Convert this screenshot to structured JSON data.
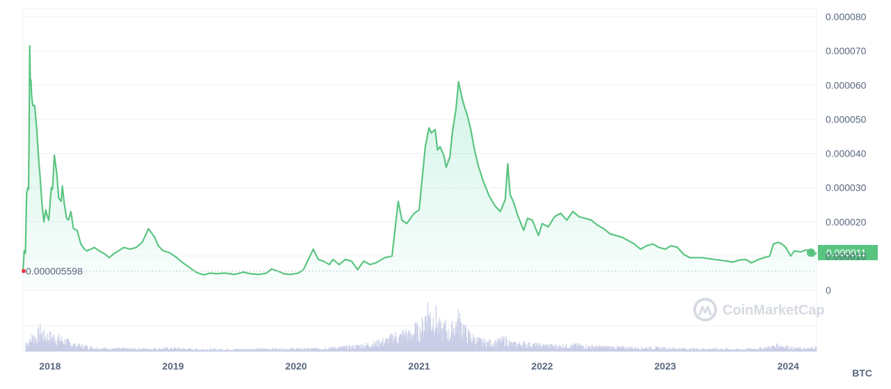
{
  "chart_data": {
    "type": "line",
    "y_unit": "BTC",
    "ylim": [
      0,
      8e-05
    ],
    "y_ticks": [
      "0",
      "0.000010",
      "0.000020",
      "0.000030",
      "0.000040",
      "0.000050",
      "0.000060",
      "0.000070",
      "0.000080"
    ],
    "x_ticks": [
      "2018",
      "2019",
      "2020",
      "2021",
      "2022",
      "2023",
      "2024"
    ],
    "current_price": "0.000011",
    "reference_price": "0.000005598",
    "reference_value": 5.598e-06,
    "watermark": "CoinMarketCap",
    "colors": {
      "up": "#16c784",
      "down": "#ea3943",
      "line_up": "#59c480",
      "line_down": "#e0403f",
      "volume": "#c9cde6"
    },
    "x_range": [
      2017.78,
      2024.23
    ],
    "series": [
      {
        "values": [
          [
            2017.78,
            5.6e-06
          ],
          [
            2017.79,
            1.15e-05
          ],
          [
            2017.8,
            1.08e-05
          ],
          [
            2017.81,
            2.85e-05
          ],
          [
            2017.82,
            3e-05
          ],
          [
            2017.825,
            2.95e-05
          ],
          [
            2017.83,
            4.5e-05
          ],
          [
            2017.835,
            7.15e-05
          ],
          [
            2017.84,
            6e-05
          ],
          [
            2017.845,
            6.15e-05
          ],
          [
            2017.85,
            5.7e-05
          ],
          [
            2017.86,
            5.4e-05
          ],
          [
            2017.875,
            5.4e-05
          ],
          [
            2017.89,
            4.8e-05
          ],
          [
            2017.91,
            3.7e-05
          ],
          [
            2017.92,
            3.3e-05
          ],
          [
            2017.935,
            2.5e-05
          ],
          [
            2017.95,
            2e-05
          ],
          [
            2017.965,
            2.35e-05
          ],
          [
            2017.975,
            2.2e-05
          ],
          [
            2017.99,
            2.05e-05
          ],
          [
            2018.01,
            3e-05
          ],
          [
            2018.02,
            2.95e-05
          ],
          [
            2018.035,
            3.95e-05
          ],
          [
            2018.055,
            3.4e-05
          ],
          [
            2018.07,
            2.7e-05
          ],
          [
            2018.09,
            2.6e-05
          ],
          [
            2018.1,
            3.05e-05
          ],
          [
            2018.115,
            2.55e-05
          ],
          [
            2018.135,
            2.1e-05
          ],
          [
            2018.15,
            2.05e-05
          ],
          [
            2018.17,
            2.3e-05
          ],
          [
            2018.19,
            1.8e-05
          ],
          [
            2018.22,
            1.75e-05
          ],
          [
            2018.25,
            1.35e-05
          ],
          [
            2018.28,
            1.2e-05
          ],
          [
            2018.3,
            1.15e-05
          ],
          [
            2018.33,
            1.2e-05
          ],
          [
            2018.36,
            1.25e-05
          ],
          [
            2018.4,
            1.15e-05
          ],
          [
            2018.45,
            1.05e-05
          ],
          [
            2018.48,
            9.5e-06
          ],
          [
            2018.52,
            1.07e-05
          ],
          [
            2018.6,
            1.25e-05
          ],
          [
            2018.65,
            1.2e-05
          ],
          [
            2018.7,
            1.25e-05
          ],
          [
            2018.75,
            1.4e-05
          ],
          [
            2018.8,
            1.8e-05
          ],
          [
            2018.85,
            1.55e-05
          ],
          [
            2018.88,
            1.3e-05
          ],
          [
            2018.92,
            1.15e-05
          ],
          [
            2018.97,
            1.1e-05
          ],
          [
            2019.02,
            9.8e-06
          ],
          [
            2019.08,
            8e-06
          ],
          [
            2019.12,
            7e-06
          ],
          [
            2019.15,
            6.2e-06
          ],
          [
            2019.19,
            5.2e-06
          ]
        ]
      },
      {
        "values": [
          [
            2019.19,
            5.2e-06
          ],
          [
            2019.25,
            4.5e-06
          ],
          [
            2019.3,
            5e-06
          ],
          [
            2019.35,
            4.8e-06
          ],
          [
            2019.42,
            5e-06
          ],
          [
            2019.5,
            4.6e-06
          ],
          [
            2019.57,
            5.3e-06
          ],
          [
            2019.63,
            4.8e-06
          ],
          [
            2019.7,
            4.6e-06
          ],
          [
            2019.76,
            5e-06
          ],
          [
            2019.8,
            6.2e-06
          ],
          [
            2019.85,
            5.6e-06
          ],
          [
            2019.9,
            4.8e-06
          ],
          [
            2019.95,
            4.6e-06
          ],
          [
            2020.02,
            5e-06
          ],
          [
            2020.06,
            6e-06
          ]
        ]
      },
      {
        "values": [
          [
            2020.06,
            6e-06
          ],
          [
            2020.1,
            9e-06
          ],
          [
            2020.14,
            1.2e-05
          ],
          [
            2020.18,
            9e-06
          ],
          [
            2020.22,
            8.5e-06
          ],
          [
            2020.27,
            7.5e-06
          ],
          [
            2020.3,
            9e-06
          ],
          [
            2020.35,
            7.5e-06
          ],
          [
            2020.4,
            9e-06
          ],
          [
            2020.45,
            8.5e-06
          ],
          [
            2020.5,
            6e-06
          ],
          [
            2020.55,
            8.5e-06
          ],
          [
            2020.6,
            7.5e-06
          ],
          [
            2020.65,
            8e-06
          ],
          [
            2020.72,
            9.5e-06
          ],
          [
            2020.78,
            1e-05
          ],
          [
            2020.8,
            1.65e-05
          ],
          [
            2020.83,
            2.6e-05
          ],
          [
            2020.86,
            2.05e-05
          ],
          [
            2020.9,
            1.95e-05
          ],
          [
            2020.93,
            2.1e-05
          ],
          [
            2020.96,
            2.25e-05
          ],
          [
            2021.0,
            2.35e-05
          ],
          [
            2021.02,
            3.1e-05
          ],
          [
            2021.05,
            4.2e-05
          ],
          [
            2021.08,
            4.75e-05
          ],
          [
            2021.1,
            4.6e-05
          ],
          [
            2021.13,
            4.7e-05
          ],
          [
            2021.15,
            4.1e-05
          ],
          [
            2021.17,
            4.2e-05
          ],
          [
            2021.2,
            3.95e-05
          ],
          [
            2021.22,
            3.6e-05
          ],
          [
            2021.25,
            3.9e-05
          ],
          [
            2021.27,
            4.6e-05
          ],
          [
            2021.3,
            5.3e-05
          ],
          [
            2021.32,
            6.1e-05
          ],
          [
            2021.35,
            5.6e-05
          ],
          [
            2021.37,
            5.35e-05
          ],
          [
            2021.39,
            5.15e-05
          ],
          [
            2021.42,
            4.7e-05
          ],
          [
            2021.45,
            4.1e-05
          ],
          [
            2021.48,
            3.65e-05
          ],
          [
            2021.52,
            3.2e-05
          ],
          [
            2021.57,
            2.75e-05
          ],
          [
            2021.62,
            2.45e-05
          ],
          [
            2021.66,
            2.3e-05
          ],
          [
            2021.7,
            2.65e-05
          ],
          [
            2021.72,
            3.7e-05
          ],
          [
            2021.74,
            2.8e-05
          ],
          [
            2021.77,
            2.55e-05
          ],
          [
            2021.8,
            2.2e-05
          ],
          [
            2021.85,
            1.75e-05
          ],
          [
            2021.88,
            2.1e-05
          ],
          [
            2021.92,
            2.05e-05
          ],
          [
            2021.97,
            1.6e-05
          ],
          [
            2022.0,
            1.95e-05
          ],
          [
            2022.05,
            1.85e-05
          ],
          [
            2022.1,
            2.15e-05
          ],
          [
            2022.15,
            2.25e-05
          ],
          [
            2022.2,
            2.05e-05
          ],
          [
            2022.25,
            2.3e-05
          ],
          [
            2022.3,
            2.15e-05
          ],
          [
            2022.35,
            2.1e-05
          ],
          [
            2022.4,
            2.05e-05
          ],
          [
            2022.45,
            1.9e-05
          ],
          [
            2022.5,
            1.8e-05
          ],
          [
            2022.55,
            1.65e-05
          ],
          [
            2022.6,
            1.6e-05
          ],
          [
            2022.65,
            1.55e-05
          ],
          [
            2022.7,
            1.45e-05
          ],
          [
            2022.75,
            1.35e-05
          ],
          [
            2022.8,
            1.2e-05
          ],
          [
            2022.85,
            1.3e-05
          ],
          [
            2022.9,
            1.35e-05
          ],
          [
            2022.95,
            1.25e-05
          ],
          [
            2023.0,
            1.2e-05
          ],
          [
            2023.05,
            1.3e-05
          ],
          [
            2023.1,
            1.25e-05
          ],
          [
            2023.15,
            1.05e-05
          ],
          [
            2023.2,
            9.5e-06
          ],
          [
            2023.3,
            9.5e-06
          ],
          [
            2023.4,
            9e-06
          ],
          [
            2023.5,
            8.5e-06
          ],
          [
            2023.55,
            8.2e-06
          ],
          [
            2023.6,
            8.8e-06
          ],
          [
            2023.65,
            9e-06
          ],
          [
            2023.68,
            8.5e-06
          ],
          [
            2023.7,
            8e-06
          ],
          [
            2023.73,
            8.5e-06
          ],
          [
            2023.76,
            9e-06
          ],
          [
            2023.8,
            9.5e-06
          ],
          [
            2023.85,
            1e-05
          ],
          [
            2023.88,
            1.35e-05
          ],
          [
            2023.92,
            1.4e-05
          ],
          [
            2023.95,
            1.35e-05
          ],
          [
            2023.98,
            1.25e-05
          ],
          [
            2024.02,
            1e-05
          ],
          [
            2024.05,
            1.15e-05
          ],
          [
            2024.1,
            1.12e-05
          ],
          [
            2024.15,
            1.18e-05
          ],
          [
            2024.2,
            1e-05
          ],
          [
            2024.23,
            1.1e-05
          ]
        ]
      }
    ],
    "volume": [
      [
        2017.83,
        0.18
      ],
      [
        2017.86,
        0.32
      ],
      [
        2017.88,
        0.25
      ],
      [
        2017.92,
        0.4
      ],
      [
        2017.95,
        0.3
      ],
      [
        2018.03,
        0.28
      ],
      [
        2018.1,
        0.22
      ],
      [
        2018.2,
        0.12
      ],
      [
        2018.4,
        0.06
      ],
      [
        2018.7,
        0.05
      ],
      [
        2019.0,
        0.06
      ],
      [
        2019.2,
        0.04
      ],
      [
        2019.5,
        0.04
      ],
      [
        2019.8,
        0.05
      ],
      [
        2020.1,
        0.05
      ],
      [
        2020.3,
        0.07
      ],
      [
        2020.45,
        0.09
      ],
      [
        2020.55,
        0.12
      ],
      [
        2020.65,
        0.16
      ],
      [
        2020.75,
        0.22
      ],
      [
        2020.8,
        0.3
      ],
      [
        2020.83,
        0.26
      ],
      [
        2020.88,
        0.35
      ],
      [
        2020.92,
        0.3
      ],
      [
        2020.97,
        0.42
      ],
      [
        2021.0,
        0.36
      ],
      [
        2021.04,
        0.58
      ],
      [
        2021.06,
        0.85
      ],
      [
        2021.08,
        0.72
      ],
      [
        2021.1,
        0.6
      ],
      [
        2021.13,
        0.68
      ],
      [
        2021.15,
        0.5
      ],
      [
        2021.18,
        0.38
      ],
      [
        2021.21,
        0.47
      ],
      [
        2021.24,
        0.3
      ],
      [
        2021.27,
        0.45
      ],
      [
        2021.3,
        0.55
      ],
      [
        2021.32,
        0.62
      ],
      [
        2021.35,
        0.5
      ],
      [
        2021.38,
        0.34
      ],
      [
        2021.42,
        0.28
      ],
      [
        2021.46,
        0.22
      ],
      [
        2021.52,
        0.18
      ],
      [
        2021.6,
        0.16
      ],
      [
        2021.7,
        0.22
      ],
      [
        2021.75,
        0.14
      ],
      [
        2021.85,
        0.15
      ],
      [
        2021.95,
        0.12
      ],
      [
        2022.05,
        0.11
      ],
      [
        2022.15,
        0.1
      ],
      [
        2022.25,
        0.12
      ],
      [
        2022.35,
        0.1
      ],
      [
        2022.45,
        0.09
      ],
      [
        2022.6,
        0.08
      ],
      [
        2022.75,
        0.07
      ],
      [
        2022.9,
        0.07
      ],
      [
        2023.05,
        0.06
      ],
      [
        2023.2,
        0.05
      ],
      [
        2023.4,
        0.05
      ],
      [
        2023.6,
        0.04
      ],
      [
        2023.8,
        0.06
      ],
      [
        2023.92,
        0.12
      ],
      [
        2024.05,
        0.06
      ],
      [
        2024.15,
        0.05
      ],
      [
        2024.22,
        0.08
      ]
    ]
  }
}
